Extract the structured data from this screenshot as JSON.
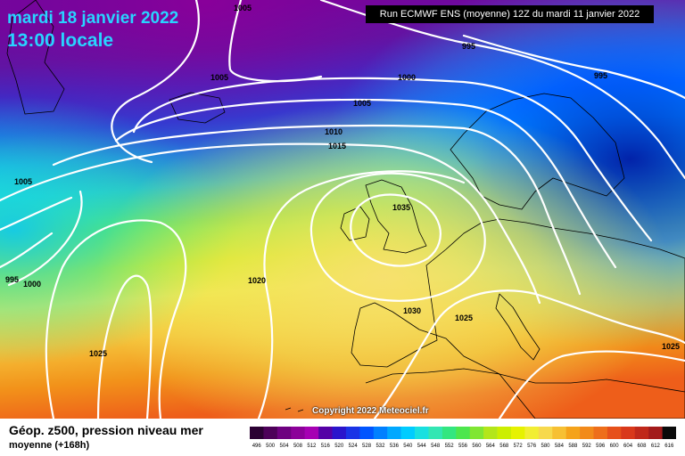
{
  "header": {
    "date": "mardi 18 janvier 2022",
    "time": "13:00 locale",
    "run_info": "Run ECMWF ENS (moyenne) 12Z du mardi 11 janvier 2022"
  },
  "footer": {
    "title": "Géop. z500, pression niveau mer",
    "subtitle": "moyenne   (+168h)",
    "copyright": "Copyright 2022 Meteociel.fr"
  },
  "isobars": [
    "1005",
    "1005",
    "1000",
    "995",
    "995",
    "1005",
    "1010",
    "1015",
    "1035",
    "1020",
    "1030",
    "1025",
    "995",
    "1000",
    "1005",
    "1025",
    "1025"
  ],
  "legend_scale": {
    "labels": [
      "496",
      "500",
      "504",
      "508",
      "512",
      "516",
      "520",
      "524",
      "528",
      "532",
      "536",
      "540",
      "544",
      "548",
      "552",
      "556",
      "560",
      "564",
      "568",
      "572",
      "576",
      "580",
      "584",
      "588",
      "592",
      "596",
      "600",
      "604",
      "608",
      "612",
      "616"
    ],
    "colors": [
      "#2b0033",
      "#4d0059",
      "#6e0080",
      "#8c0099",
      "#a600b3",
      "#5500a6",
      "#2a14cc",
      "#1a33e6",
      "#0055ff",
      "#0080ff",
      "#00a8ff",
      "#00ccff",
      "#19e0e0",
      "#33e6b3",
      "#33e680",
      "#4de64d",
      "#80e633",
      "#b3e61a",
      "#ccee00",
      "#e6f200",
      "#f2ee33",
      "#f7d94d",
      "#f7c033",
      "#f5a31a",
      "#f28a1a",
      "#ee6e1a",
      "#e6501a",
      "#d9381a",
      "#c0281a",
      "#a31a1a",
      "#0a0a0a"
    ]
  },
  "colors": {
    "title_cyan": "#29d3ff",
    "isobar": "#ffffff",
    "coastline": "#000000"
  }
}
